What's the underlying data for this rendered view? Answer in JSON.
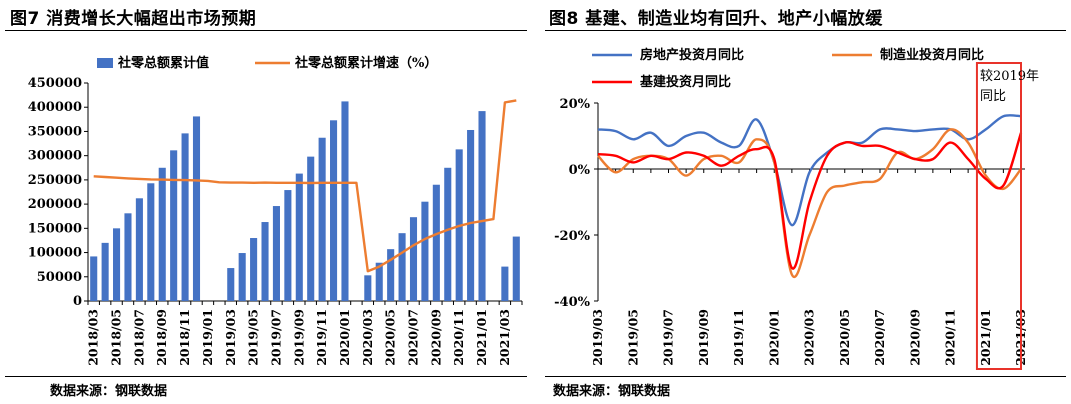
{
  "left_panel": {
    "title": "图7  消费增长大幅超出市场预期",
    "source": "数据来源：钢联数据"
  },
  "right_panel": {
    "title": "图8  基建、制造业均有回升、地产小幅放缓",
    "source": "数据来源：钢联数据",
    "highlight_note": "较2019年同比"
  },
  "colors": {
    "blue": "#4472C4",
    "orange": "#ED7D31",
    "red": "#FF0000",
    "highlight_box": "#E8332A"
  },
  "chart_data": [
    {
      "type": "bar",
      "series": [
        {
          "name": "社零总额累计值",
          "type": "bar",
          "values": [
            92000,
            120000,
            150000,
            181000,
            212000,
            243000,
            275000,
            311000,
            346000,
            381000,
            null,
            null,
            68000,
            99000,
            130000,
            163000,
            196000,
            229000,
            263000,
            298000,
            337000,
            373000,
            412000,
            null,
            53000,
            79000,
            107000,
            140000,
            173000,
            205000,
            240000,
            275000,
            313000,
            353000,
            392000,
            null,
            71000,
            133000
          ]
        },
        {
          "name": "社零总额累计增速（%）",
          "type": "line",
          "values": [
            257500,
            256000,
            254500,
            253000,
            252000,
            251000,
            250500,
            250000,
            249500,
            249000,
            248000,
            245000,
            244500,
            244500,
            244000,
            244500,
            244000,
            244000,
            244000,
            243500,
            244000,
            244000,
            244000,
            244000,
            61500,
            71000,
            85000,
            100000,
            115000,
            128000,
            138000,
            147000,
            155000,
            161000,
            165000,
            169000,
            410000,
            414000
          ]
        }
      ],
      "x": [
        "2018/03",
        "2018/04",
        "2018/05",
        "2018/06",
        "2018/07",
        "2018/08",
        "2018/09",
        "2018/10",
        "2018/11",
        "2018/12",
        "2019/01",
        "2019/02",
        "2019/03",
        "2019/04",
        "2019/05",
        "2019/06",
        "2019/07",
        "2019/08",
        "2019/09",
        "2019/10",
        "2019/11",
        "2019/12",
        "2020/01",
        "2020/02",
        "2020/03",
        "2020/04",
        "2020/05",
        "2020/06",
        "2020/07",
        "2020/08",
        "2020/09",
        "2020/10",
        "2020/11",
        "2020/12",
        "2021/01",
        "2021/02",
        "2021/03",
        "2021/04"
      ],
      "tick_labels": [
        "2018/03",
        "2018/05",
        "2018/07",
        "2018/09",
        "2018/11",
        "2019/01",
        "2019/03",
        "2019/05",
        "2019/07",
        "2019/09",
        "2019/11",
        "2020/01",
        "2020/03",
        "2020/05",
        "2020/07",
        "2020/09",
        "2020/11",
        "2021/01",
        "2021/03"
      ],
      "y_ticks": [
        "0",
        "50000",
        "100000",
        "150000",
        "200000",
        "250000",
        "300000",
        "350000",
        "400000",
        "450000"
      ],
      "ylim": [
        0,
        450000
      ],
      "grid": false,
      "legend_position": "top"
    },
    {
      "type": "line",
      "x": [
        "2019/03",
        "2019/04",
        "2019/05",
        "2019/06",
        "2019/07",
        "2019/08",
        "2019/09",
        "2019/10",
        "2019/11",
        "2019/12",
        "2020/01",
        "2020/02",
        "2020/03",
        "2020/04",
        "2020/05",
        "2020/06",
        "2020/07",
        "2020/08",
        "2020/09",
        "2020/10",
        "2020/11",
        "2020/12",
        "2021/01",
        "2021/02",
        "2021/03"
      ],
      "tick_labels": [
        "2019/03",
        "2019/05",
        "2019/07",
        "2019/09",
        "2019/11",
        "2020/01",
        "2020/03",
        "2020/05",
        "2020/07",
        "2020/09",
        "2020/11",
        "2021/01",
        "2021/03"
      ],
      "series": [
        {
          "name": "房地产投资月同比",
          "values": [
            12,
            11.5,
            9,
            11,
            7,
            10,
            11,
            8,
            7,
            15,
            2,
            -17,
            -1,
            5,
            8,
            8,
            12,
            12,
            11.5,
            12,
            12,
            9,
            12,
            16,
            16
          ]
        },
        {
          "name": "制造业投资月同比",
          "values": [
            4,
            -1,
            3,
            4,
            3,
            -2,
            3,
            4,
            2,
            9,
            2,
            -32,
            -20,
            -7,
            -5,
            -4,
            -3,
            5,
            3,
            6,
            12,
            8,
            -2,
            -6,
            0
          ]
        },
        {
          "name": "基建投资月同比",
          "values": [
            4.5,
            4,
            2,
            4,
            3,
            5,
            4,
            1,
            4,
            6,
            3,
            -30,
            -10,
            4,
            8,
            7,
            7,
            5,
            3,
            3,
            8,
            3,
            -3,
            -5,
            11
          ]
        }
      ],
      "y_ticks": [
        "-40%",
        "-20%",
        "0%",
        "20%"
      ],
      "ylim": [
        -40,
        20
      ],
      "grid": false,
      "legend_position": "top",
      "highlight_range": [
        "2020/12",
        "2021/03"
      ]
    }
  ]
}
